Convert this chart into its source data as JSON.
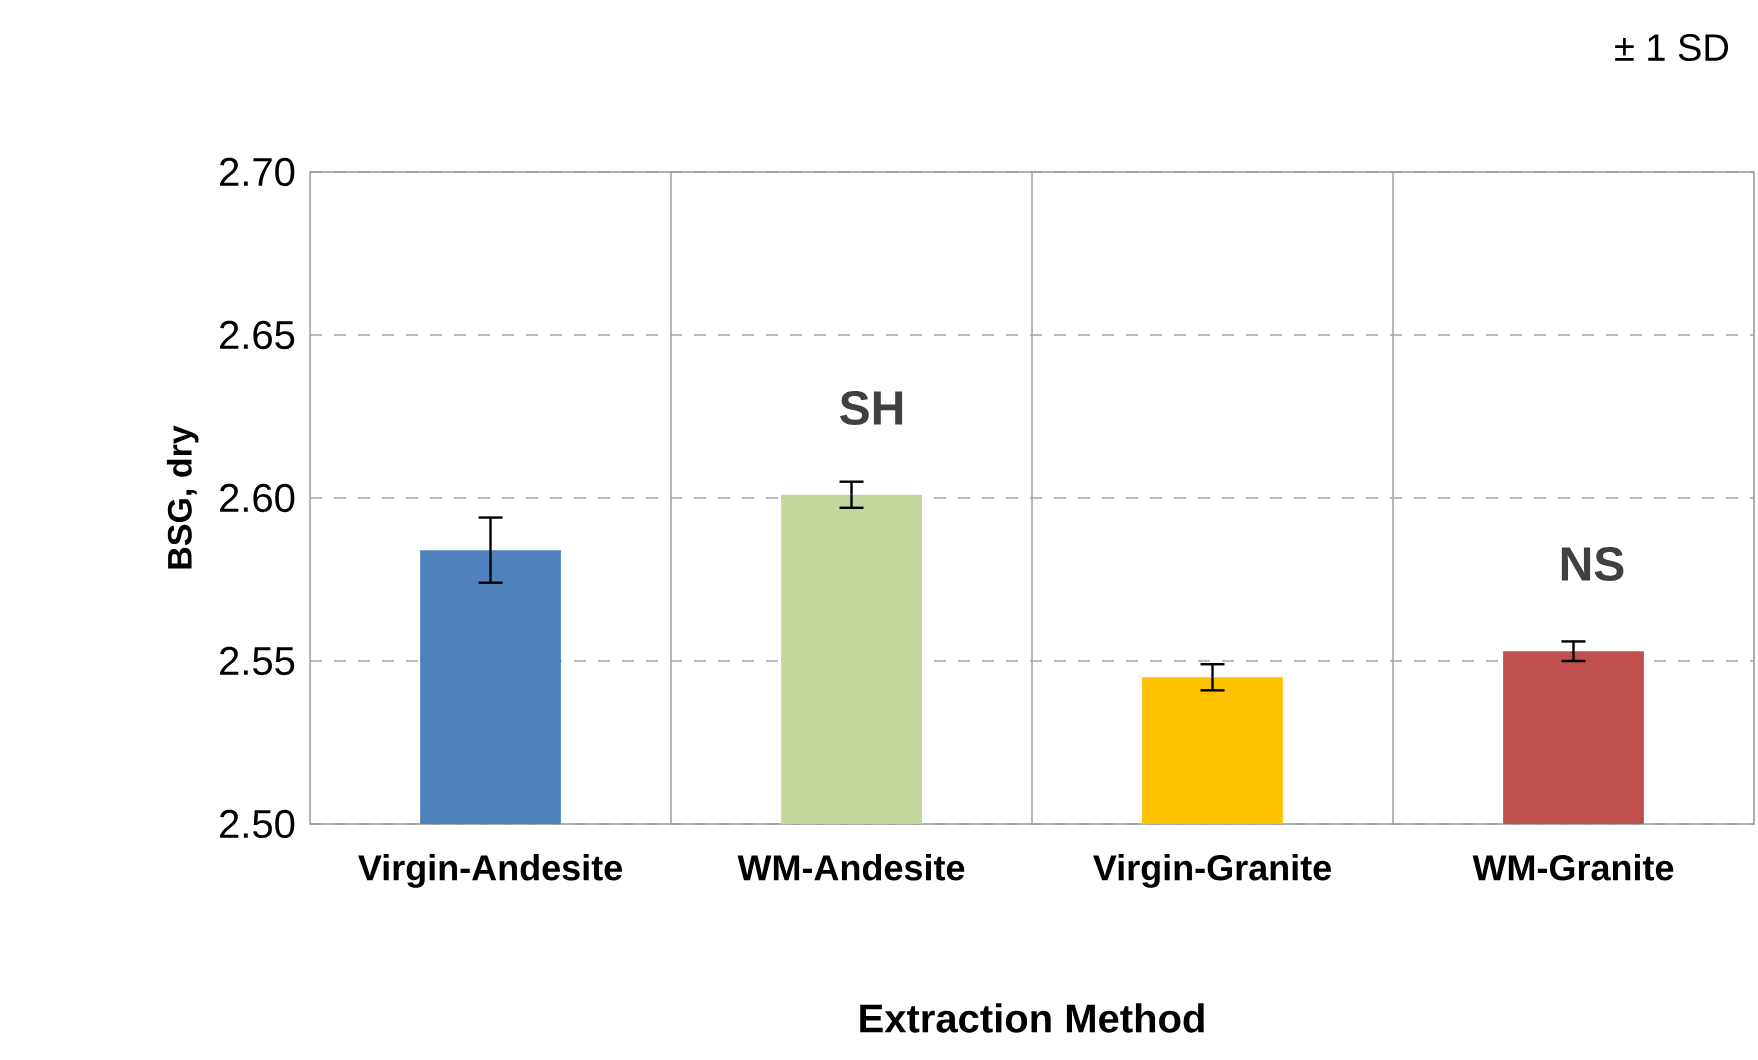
{
  "chart_data": {
    "type": "bar",
    "xlabel": "Extraction Method",
    "ylabel": "BSG, dry",
    "categories": [
      "Virgin-Andesite",
      "WM-Andesite",
      "Virgin-Granite",
      "WM-Granite"
    ],
    "values": [
      2.584,
      2.601,
      2.545,
      2.553
    ],
    "errors": [
      0.01,
      0.004,
      0.004,
      0.003
    ],
    "colors": [
      "#4f81bd",
      "#c3d69b",
      "#ffc000",
      "#c0504d"
    ],
    "ylim": [
      2.5,
      2.7
    ],
    "yticks": [
      {
        "value": 2.5,
        "label": "2.50"
      },
      {
        "value": 2.55,
        "label": "2.55"
      },
      {
        "value": 2.6,
        "label": "2.60"
      },
      {
        "value": 2.65,
        "label": "2.65"
      },
      {
        "value": 2.7,
        "label": "2.70"
      }
    ],
    "grid": true,
    "annotations": [
      "SH",
      "NS",
      "± 1 SD"
    ]
  }
}
